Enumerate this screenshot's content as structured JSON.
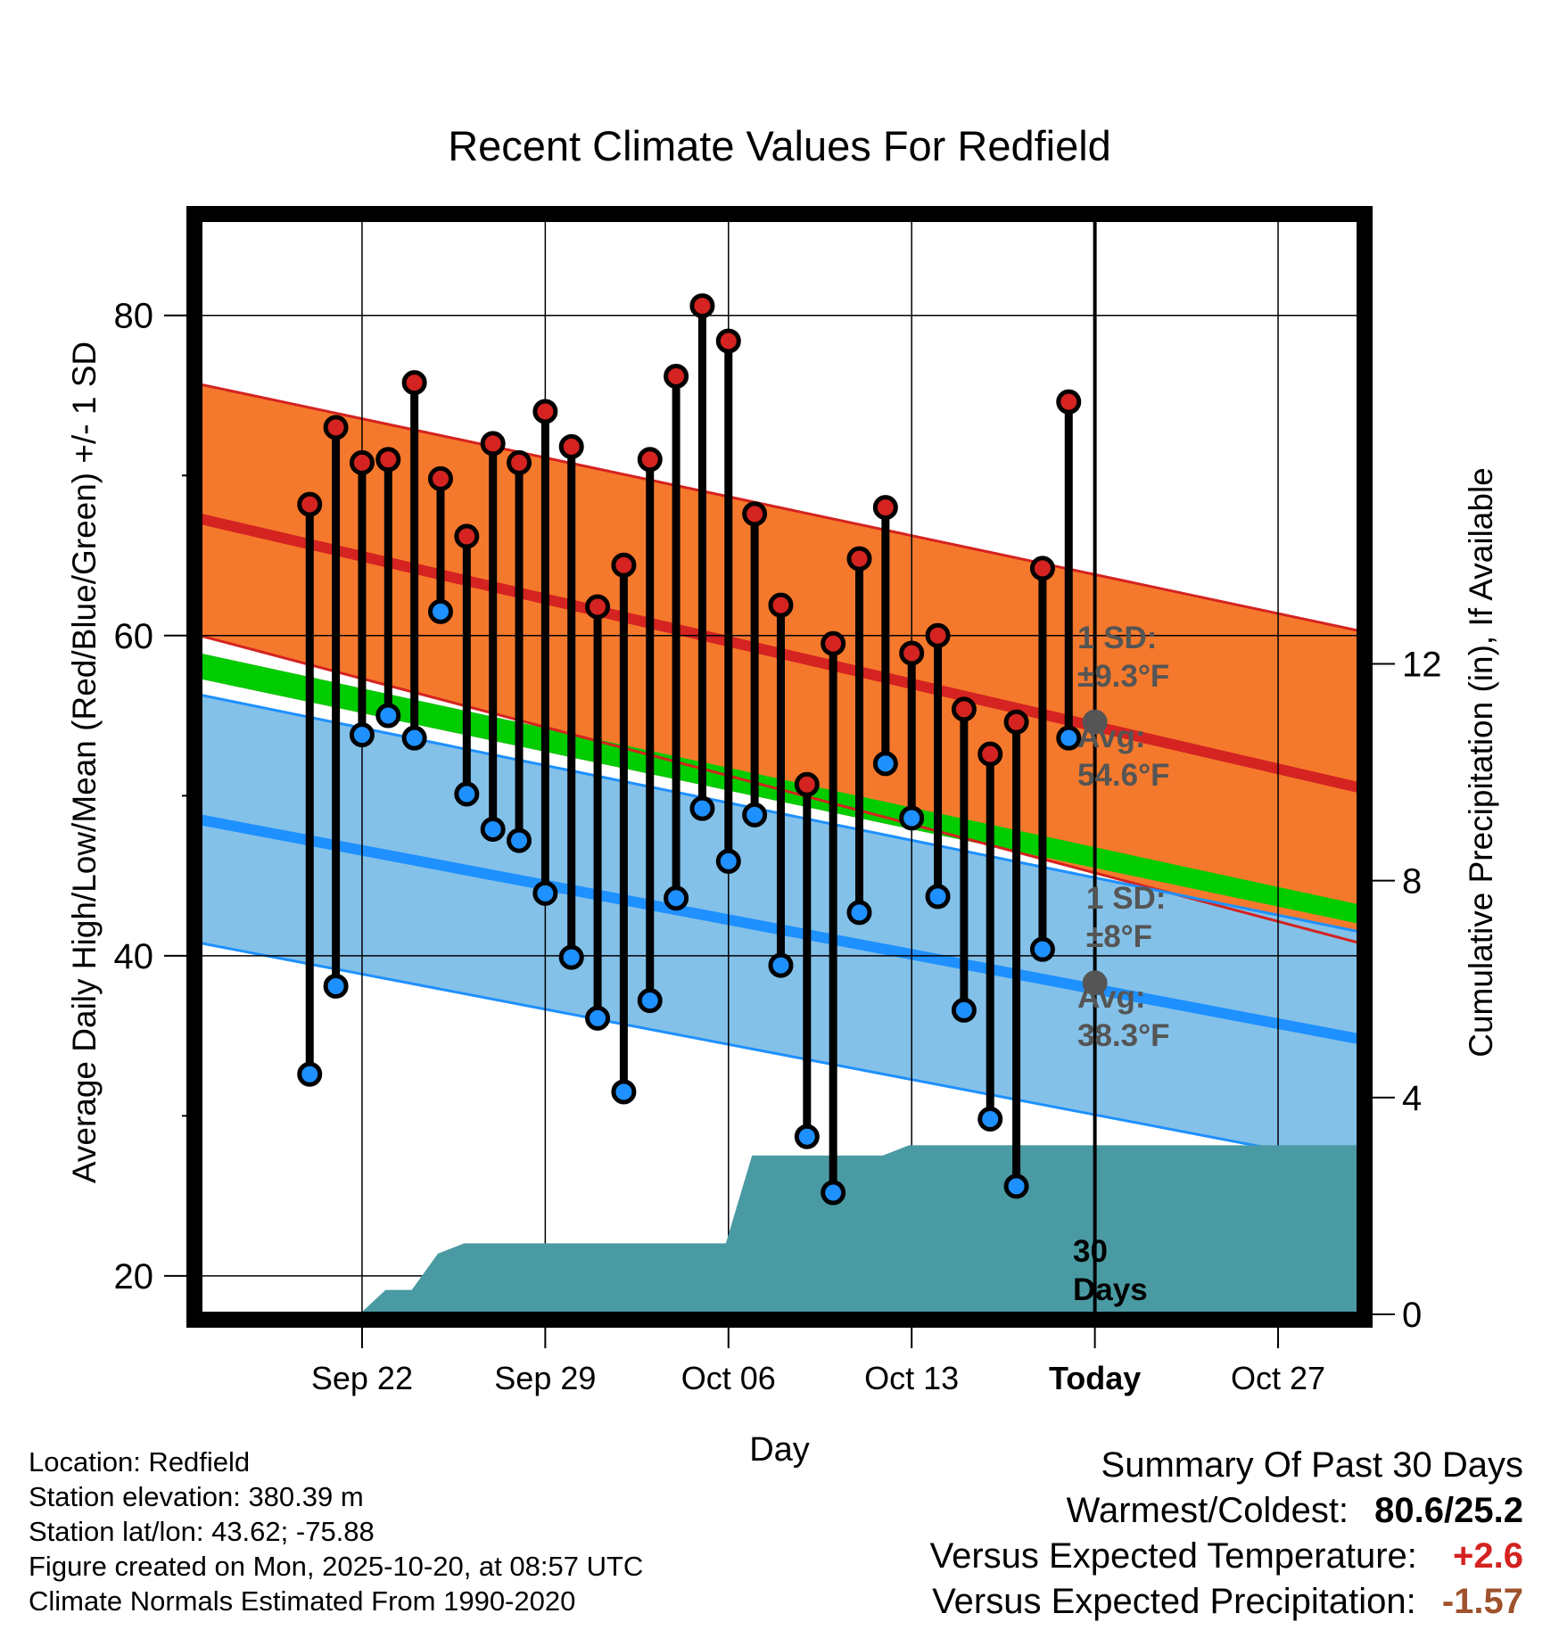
{
  "chart_data": {
    "type": "line",
    "title": "Recent Climate Values For Redfield",
    "xlabel": "Day",
    "ylabel": "Average Daily High/Low/Mean (Red/Blue/Green) +/- 1 SD",
    "y2label": "Cumulative Precipitation (in), If Available",
    "x_range_days": [
      -34.2,
      10.1
    ],
    "ylim": [
      17.6,
      86.0
    ],
    "y2lim": [
      0,
      20.2
    ],
    "x_ticks": [
      {
        "day": -28,
        "label": "Sep 22"
      },
      {
        "day": -21,
        "label": "Sep 29"
      },
      {
        "day": -14,
        "label": "Oct 06"
      },
      {
        "day": -7,
        "label": "Oct 13"
      },
      {
        "day": 0,
        "label": "Today"
      },
      {
        "day": 7,
        "label": "Oct 27"
      }
    ],
    "y_ticks": [
      20,
      40,
      60,
      80
    ],
    "y2_ticks": [
      0,
      4,
      8,
      12
    ],
    "days": [
      -30,
      -29,
      -28,
      -27,
      -26,
      -25,
      -24,
      -23,
      -22,
      -21,
      -20,
      -19,
      -18,
      -17,
      -16,
      -15,
      -14,
      -13,
      -12,
      -11,
      -10,
      -9,
      -8,
      -7,
      -6,
      -5,
      -4,
      -3,
      -2,
      -1
    ],
    "highs": [
      68.2,
      73.0,
      70.8,
      71.0,
      75.8,
      69.8,
      66.2,
      72.0,
      70.8,
      74.0,
      71.8,
      61.8,
      64.4,
      71.0,
      76.2,
      80.6,
      78.4,
      67.6,
      61.9,
      50.7,
      59.5,
      64.8,
      68.0,
      58.9,
      60.0,
      55.4,
      52.6,
      54.6,
      64.2,
      74.6
    ],
    "lows": [
      32.6,
      38.1,
      53.8,
      55.0,
      53.6,
      61.5,
      50.1,
      47.9,
      47.2,
      43.9,
      39.9,
      36.1,
      31.5,
      37.2,
      43.6,
      49.2,
      45.9,
      48.8,
      39.4,
      28.7,
      25.2,
      42.7,
      52.0,
      48.6,
      43.7,
      36.6,
      29.8,
      25.6,
      40.4,
      53.6
    ],
    "normal_range_days": [
      -34.2,
      10.1
    ],
    "normal_high": {
      "avg": [
        67.3,
        50.5
      ],
      "upper": [
        75.7,
        60.3
      ],
      "lower": [
        60.0,
        40.8
      ]
    },
    "normal_mean": {
      "upper": [
        58.9,
        43.2
      ],
      "lower": [
        57.3,
        42.0
      ]
    },
    "normal_low": {
      "avg": [
        48.5,
        34.8
      ],
      "upper": [
        56.3,
        41.5
      ],
      "lower": [
        40.8,
        26.9
      ]
    },
    "precip_days": [
      -29.1,
      -28.1,
      -27.1,
      -26.1,
      -25.1,
      -24.1,
      -23.1,
      -22.1,
      -21.1,
      -20.1,
      -19.1,
      -18.1,
      -17.1,
      -16.1,
      -15.1,
      -14.1,
      -13.1,
      -12.1,
      -11.1,
      -10.1,
      -9.1,
      -8.1,
      -7.1,
      -6.1,
      -5.1,
      -4.1,
      -3.1,
      -2.1,
      -1.1,
      -0.1,
      10.1
    ],
    "precip_cum": [
      0,
      0,
      0.45,
      0.45,
      1.12,
      1.31,
      1.31,
      1.31,
      1.31,
      1.31,
      1.31,
      1.31,
      1.31,
      1.31,
      1.31,
      1.31,
      2.93,
      2.93,
      2.93,
      2.93,
      2.93,
      2.93,
      3.12,
      3.12,
      3.12,
      3.12,
      3.12,
      3.12,
      3.12,
      3.12,
      3.12
    ],
    "annotations": {
      "high_sd": "1 SD:",
      "high_sd_val": "±9.3°F",
      "high_avg": "Avg:",
      "high_avg_val": "54.6°F",
      "low_sd": "1 SD:",
      "low_sd_val": "±8°F",
      "low_avg": "Avg:",
      "low_avg_val": "38.3°F",
      "days_num": "30",
      "days_word": "Days"
    },
    "today_markers": [
      54.6,
      38.3
    ]
  },
  "info": {
    "location": "Location: Redfield",
    "elevation": "Station elevation: 380.39 m",
    "latlon": "Station lat/lon: 43.62; -75.88",
    "created": "Figure created on Mon, 2025-10-20, at 08:57 UTC",
    "normals": "Climate Normals Estimated From 1990-2020"
  },
  "summary": {
    "title": "Summary Of Past 30 Days",
    "warm_label": "Warmest/Coldest:",
    "warm_value": "80.6/25.2",
    "temp_label": "Versus Expected Temperature:",
    "temp_value": "+2.6",
    "precip_label": "Versus Expected Precipitation:",
    "precip_value": "-1.57"
  },
  "colors": {
    "high_band": "#F5792C",
    "high_line": "#D42320",
    "mean_line": "#00CC00",
    "mean_dark": "#8B1414",
    "low_band": "#84C1E8",
    "low_line": "#1E90FF",
    "precip": "#4A9AA3",
    "high_dot": "#D42320",
    "low_dot": "#1E90FF",
    "grey": "#555555",
    "temp_value": "#D42320",
    "precip_value": "#A0522D"
  }
}
